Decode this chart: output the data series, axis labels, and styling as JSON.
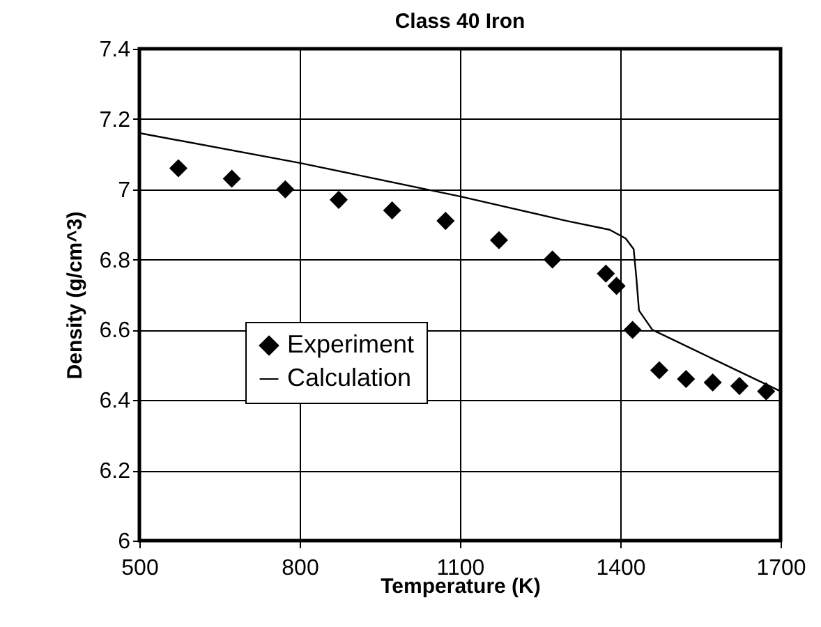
{
  "chart_data": {
    "type": "scatter",
    "title": "Class 40 Iron",
    "xlabel": "Temperature (K)",
    "ylabel": "Density (g/cm^3)",
    "xlim": [
      500,
      1700
    ],
    "xticks": [
      500,
      800,
      1100,
      1400,
      1700
    ],
    "ylim": [
      6,
      7.4
    ],
    "yticks": [
      6,
      6.2,
      6.4,
      6.6,
      6.8,
      7,
      7.2,
      7.4
    ],
    "grid": true,
    "legend": "left",
    "series": [
      {
        "name": "Experiment",
        "marker": "diamond",
        "color": "#000000",
        "x": [
          573,
          673,
          773,
          873,
          973,
          1073,
          1173,
          1273,
          1373,
          1393,
          1423,
          1473,
          1523,
          1573,
          1623,
          1673
        ],
        "values": [
          7.06,
          7.03,
          7.0,
          6.97,
          6.94,
          6.91,
          6.855,
          6.8,
          6.76,
          6.725,
          6.6,
          6.485,
          6.46,
          6.45,
          6.44,
          6.425
        ]
      },
      {
        "name": "Calculation",
        "type": "line",
        "marker": "none",
        "color": "#000000",
        "x": [
          500,
          800,
          1100,
          1300,
          1380,
          1410,
          1425,
          1430,
          1435,
          1460,
          1700
        ],
        "values": [
          7.16,
          7.075,
          6.98,
          6.91,
          6.885,
          6.86,
          6.83,
          6.75,
          6.655,
          6.6,
          6.425
        ]
      }
    ]
  }
}
